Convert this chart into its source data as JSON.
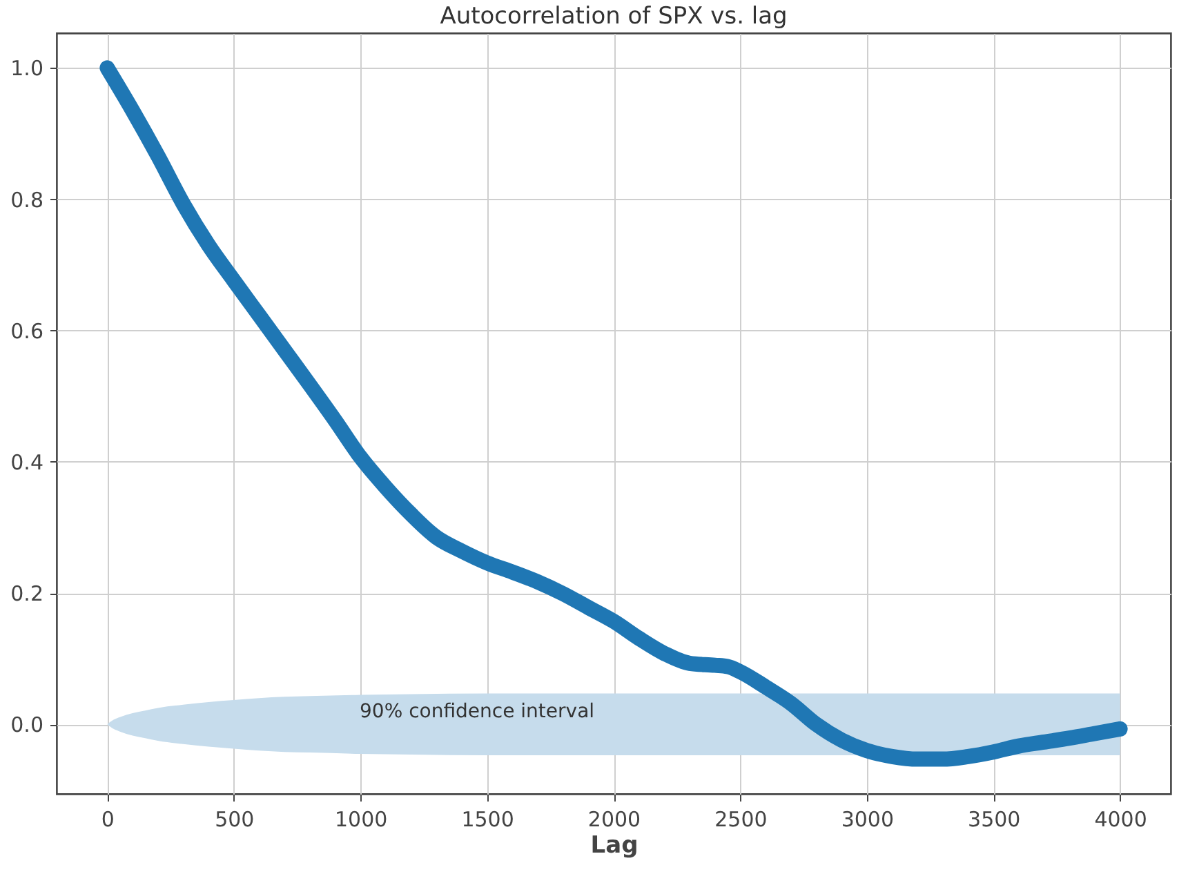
{
  "chart_data": {
    "type": "line",
    "title": "Autocorrelation of SPX vs. lag",
    "xlabel": "Lag",
    "xlim": [
      -200,
      4200
    ],
    "ylim": [
      -0.106,
      1.053
    ],
    "xticks": [
      0,
      500,
      1000,
      1500,
      2000,
      2500,
      3000,
      3500,
      4000
    ],
    "yticks": [
      {
        "value": 0,
        "label": "0.0"
      },
      {
        "value": 0.2,
        "label": "0.2"
      },
      {
        "value": 0.4,
        "label": "0.4"
      },
      {
        "value": 0.6,
        "label": "0.6"
      },
      {
        "value": 0.8,
        "label": "0.8"
      },
      {
        "value": 1,
        "label": "1.0"
      }
    ],
    "grid": true,
    "series": [
      {
        "color": "#c6dcec",
        "x": [
          0,
          25,
          50,
          100,
          150,
          200,
          300,
          400,
          500,
          600,
          700,
          800,
          1000,
          1200,
          1500,
          2000,
          2500,
          3000,
          3500,
          4000
        ],
        "values": [
          null,
          null,
          null,
          null,
          null,
          null,
          null,
          null,
          null,
          null,
          null,
          null,
          null,
          null,
          null,
          null,
          null,
          null,
          null,
          null
        ],
        "upper": [
          0,
          0.007,
          0.011,
          0.017,
          0.021,
          0.025,
          0.03,
          0.034,
          0.037,
          0.04,
          0.042,
          0.043,
          0.045,
          0.046,
          0.047,
          0.047,
          0.047,
          0.047,
          0.047,
          0.047
        ],
        "lower": [
          0,
          -0.007,
          -0.011,
          -0.017,
          -0.021,
          -0.025,
          -0.03,
          -0.034,
          -0.037,
          -0.04,
          -0.042,
          -0.043,
          -0.045,
          -0.046,
          -0.047,
          -0.047,
          -0.047,
          -0.047,
          -0.047,
          -0.047
        ]
      },
      {
        "color": "#1f77b4",
        "x": [
          0,
          100,
          200,
          300,
          400,
          500,
          600,
          700,
          800,
          900,
          1000,
          1100,
          1200,
          1300,
          1400,
          1500,
          1600,
          1700,
          1800,
          1900,
          2000,
          2100,
          2200,
          2300,
          2400,
          2450,
          2500,
          2600,
          2700,
          2800,
          2900,
          3000,
          3100,
          3200,
          3300,
          3400,
          3500,
          3600,
          3700,
          3800,
          3900,
          4000
        ],
        "values": [
          1.0,
          0.935,
          0.866,
          0.793,
          0.73,
          0.676,
          0.623,
          0.57,
          0.517,
          0.463,
          0.407,
          0.361,
          0.32,
          0.285,
          0.264,
          0.246,
          0.232,
          0.217,
          0.199,
          0.178,
          0.157,
          0.131,
          0.108,
          0.093,
          0.09,
          0.088,
          0.08,
          0.057,
          0.032,
          0.0,
          -0.024,
          -0.04,
          -0.049,
          -0.053,
          -0.053,
          -0.049,
          -0.042,
          -0.033,
          -0.027,
          -0.021,
          -0.014,
          -0.007
        ]
      }
    ],
    "annotations": [
      "90% confidence interval"
    ]
  }
}
